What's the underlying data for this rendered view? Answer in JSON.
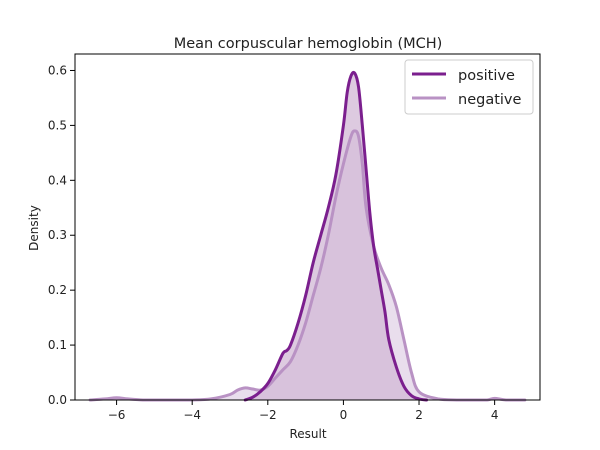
{
  "chart_data": {
    "type": "area",
    "title": "Mean corpuscular hemoglobin (MCH)",
    "xlabel": "Result",
    "ylabel": "Density",
    "xlim": [
      -7.1,
      5.2
    ],
    "ylim": [
      0,
      0.63
    ],
    "xticks": [
      -6,
      -4,
      -2,
      0,
      2,
      4
    ],
    "xtick_labels": [
      "−6",
      "−4",
      "−2",
      "0",
      "2",
      "4"
    ],
    "yticks": [
      0.0,
      0.1,
      0.2,
      0.3,
      0.4,
      0.5,
      0.6
    ],
    "ytick_labels": [
      "0.0",
      "0.1",
      "0.2",
      "0.3",
      "0.4",
      "0.5",
      "0.6"
    ],
    "grid": false,
    "legend_position": "top-right",
    "series": [
      {
        "name": "positive",
        "color": "#7b1f8e",
        "fill": "#d1b8d6",
        "x": [
          -2.6,
          -2.4,
          -2.2,
          -2.0,
          -1.8,
          -1.6,
          -1.5,
          -1.4,
          -1.2,
          -1.0,
          -0.8,
          -0.6,
          -0.4,
          -0.2,
          0.0,
          0.1,
          0.2,
          0.3,
          0.4,
          0.5,
          0.6,
          0.7,
          0.8,
          0.9,
          1.0,
          1.1,
          1.2,
          1.4,
          1.6,
          1.8,
          2.0,
          2.2
        ],
        "y": [
          0.0,
          0.005,
          0.015,
          0.03,
          0.055,
          0.085,
          0.09,
          0.1,
          0.14,
          0.19,
          0.25,
          0.3,
          0.35,
          0.41,
          0.5,
          0.56,
          0.59,
          0.595,
          0.57,
          0.5,
          0.42,
          0.34,
          0.28,
          0.24,
          0.2,
          0.16,
          0.11,
          0.06,
          0.025,
          0.008,
          0.002,
          0.0
        ]
      },
      {
        "name": "negative",
        "color": "#b992c4",
        "fill": "#e2d3e7",
        "x": [
          -6.7,
          -6.3,
          -6.0,
          -5.7,
          -5.3,
          -5.0,
          -4.5,
          -4.0,
          -3.5,
          -3.0,
          -2.8,
          -2.6,
          -2.4,
          -2.2,
          -2.0,
          -1.8,
          -1.6,
          -1.4,
          -1.2,
          -1.0,
          -0.8,
          -0.6,
          -0.4,
          -0.2,
          0.0,
          0.2,
          0.3,
          0.4,
          0.5,
          0.6,
          0.8,
          1.0,
          1.2,
          1.4,
          1.6,
          1.8,
          2.0,
          2.5,
          3.0,
          3.5,
          3.8,
          4.0,
          4.3,
          4.8
        ],
        "y": [
          0.0,
          0.002,
          0.004,
          0.002,
          0.0,
          0.0,
          0.0,
          0.0,
          0.002,
          0.01,
          0.018,
          0.022,
          0.02,
          0.018,
          0.025,
          0.04,
          0.055,
          0.07,
          0.1,
          0.14,
          0.19,
          0.24,
          0.3,
          0.37,
          0.43,
          0.48,
          0.49,
          0.48,
          0.43,
          0.35,
          0.28,
          0.24,
          0.21,
          0.17,
          0.11,
          0.05,
          0.015,
          0.002,
          0.0,
          0.0,
          0.0,
          0.003,
          0.0,
          0.0
        ]
      }
    ]
  }
}
